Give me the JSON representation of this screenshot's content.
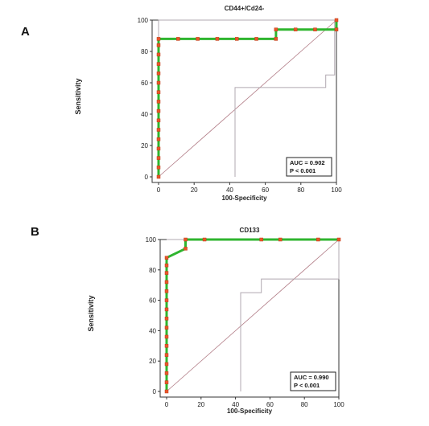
{
  "panels": [
    {
      "letter": "A",
      "chart_data": {
        "type": "line",
        "title": "CD44+/Cd24-",
        "xlabel": "100-Specificity",
        "ylabel": "Sensitivity",
        "xlim": [
          0,
          100
        ],
        "ylim": [
          0,
          100
        ],
        "xticks": [
          "0",
          "20",
          "40",
          "60",
          "80",
          "100"
        ],
        "yticks": [
          "0",
          "20",
          "40",
          "60",
          "80",
          "100"
        ],
        "grid": false,
        "reference_line": [
          [
            0,
            0
          ],
          [
            100,
            100
          ]
        ],
        "roc": [
          [
            0,
            0
          ],
          [
            0,
            6
          ],
          [
            0,
            12
          ],
          [
            0,
            18
          ],
          [
            0,
            24
          ],
          [
            0,
            30
          ],
          [
            0,
            36
          ],
          [
            0,
            42
          ],
          [
            0,
            48
          ],
          [
            0,
            54
          ],
          [
            0,
            60
          ],
          [
            0,
            66
          ],
          [
            0,
            72
          ],
          [
            0,
            78
          ],
          [
            0,
            84
          ],
          [
            0,
            88
          ],
          [
            11,
            88
          ],
          [
            22,
            88
          ],
          [
            33,
            88
          ],
          [
            44,
            88
          ],
          [
            55,
            88
          ],
          [
            66,
            88
          ],
          [
            66,
            94
          ],
          [
            77,
            94
          ],
          [
            88,
            94
          ],
          [
            100,
            94
          ],
          [
            100,
            100
          ]
        ],
        "ci_upper": [
          [
            0,
            88
          ],
          [
            0,
            100
          ],
          [
            100,
            100
          ]
        ],
        "ci_lower": [
          [
            43,
            0
          ],
          [
            43,
            57
          ],
          [
            94,
            57
          ],
          [
            94,
            65
          ],
          [
            99,
            65
          ],
          [
            99,
            100
          ]
        ],
        "annotation": {
          "auc": "AUC = 0.902",
          "p": "P < 0.001"
        },
        "colors": {
          "roc": "#2fb52f",
          "marker": "#e8572a",
          "reference": "#b07a84",
          "ci": "#b0a8b0"
        }
      }
    },
    {
      "letter": "B",
      "chart_data": {
        "type": "line",
        "title": "CD133",
        "xlabel": "100-Specificity",
        "ylabel": "Sensitivity",
        "xlim": [
          0,
          100
        ],
        "ylim": [
          0,
          100
        ],
        "xticks": [
          "0",
          "20",
          "40",
          "60",
          "80",
          "100"
        ],
        "yticks": [
          "0",
          "20",
          "40",
          "60",
          "80",
          "100"
        ],
        "grid": false,
        "reference_line": [
          [
            0,
            0
          ],
          [
            100,
            100
          ]
        ],
        "roc": [
          [
            0,
            0
          ],
          [
            0,
            6
          ],
          [
            0,
            12
          ],
          [
            0,
            18
          ],
          [
            0,
            24
          ],
          [
            0,
            30
          ],
          [
            0,
            36
          ],
          [
            0,
            42
          ],
          [
            0,
            48
          ],
          [
            0,
            54
          ],
          [
            0,
            60
          ],
          [
            0,
            66
          ],
          [
            0,
            72
          ],
          [
            0,
            78
          ],
          [
            0,
            83
          ],
          [
            0,
            88
          ],
          [
            11,
            94
          ],
          [
            11,
            100
          ],
          [
            22,
            100
          ],
          [
            55,
            100
          ],
          [
            66,
            100
          ],
          [
            88,
            100
          ],
          [
            100,
            100
          ]
        ],
        "ci_upper": [
          [
            0,
            100
          ],
          [
            100,
            100
          ]
        ],
        "ci_lower": [
          [
            43,
            0
          ],
          [
            43,
            65
          ],
          [
            55,
            65
          ],
          [
            55,
            74
          ],
          [
            100,
            74
          ],
          [
            100,
            100
          ]
        ],
        "annotation": {
          "auc": "AUC = 0.990",
          "p": "P < 0.001"
        },
        "colors": {
          "roc": "#2fb52f",
          "marker": "#e8572a",
          "reference": "#b07a84",
          "ci": "#b0a8b0"
        }
      }
    }
  ]
}
